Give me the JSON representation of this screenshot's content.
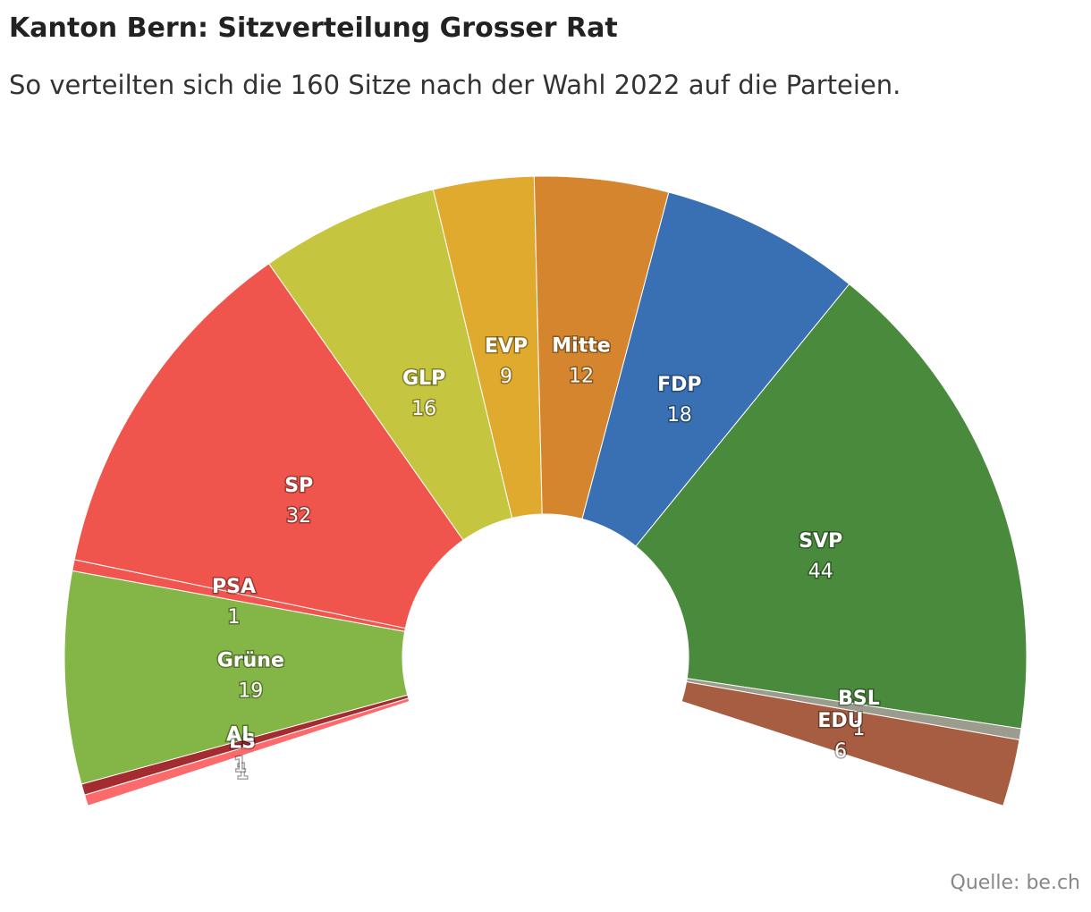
{
  "header": {
    "title": "Kanton Bern: Sitzverteilung Grosser Rat",
    "subtitle": "So verteilten sich die 160 Sitze nach der Wahl 2022 auf die Parteien."
  },
  "footer": {
    "source": "Quelle: be.ch"
  },
  "chart_data": {
    "type": "pie",
    "variant": "semicircle-donut",
    "title": "Kanton Bern: Sitzverteilung Grosser Rat",
    "subtitle": "So verteilten sich die 160 Sitze nach der Wahl 2022 auf die Parteien.",
    "total": 160,
    "categories": [
      "LS",
      "AL",
      "Grüne",
      "PSA",
      "SP",
      "GLP",
      "EVP",
      "Mitte",
      "FDP",
      "SVP",
      "BSL",
      "EDU"
    ],
    "values": [
      1,
      1,
      19,
      1,
      32,
      16,
      9,
      12,
      18,
      44,
      1,
      6
    ],
    "colors": [
      "#fc6a6c",
      "#a42b30",
      "#84b547",
      "#f0564f",
      "#ef554d",
      "#c6c53f",
      "#e0aa2e",
      "#d5852d",
      "#3870b3",
      "#4a8a3d",
      "#9b9b8e",
      "#a65d42"
    ]
  }
}
